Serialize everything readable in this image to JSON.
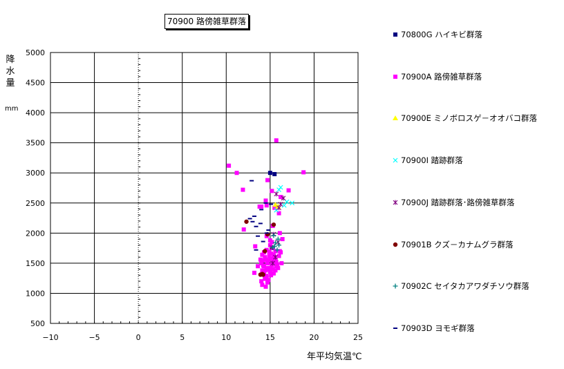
{
  "title": "70900 路傍雑草群落",
  "y_axis": {
    "label_chars": [
      "降",
      "水",
      "量"
    ],
    "unit": "mm"
  },
  "x_axis": {
    "label": "年平均気温℃"
  },
  "chart_data": {
    "type": "scatter",
    "title": "70900 路傍雑草群落",
    "xlabel": "年平均気温℃",
    "ylabel": "降水量 mm",
    "xlim": [
      -10,
      25
    ],
    "ylim": [
      500,
      5000
    ],
    "x_ticks": [
      -10,
      -5,
      0,
      5,
      10,
      15,
      20,
      25
    ],
    "y_ticks": [
      500,
      1000,
      1500,
      2000,
      2500,
      3000,
      3500,
      4000,
      4500,
      5000
    ],
    "x_tick_labels": [
      "−10",
      "−5",
      "0",
      "5",
      "10",
      "15",
      "20",
      "25"
    ],
    "grid": true,
    "legend": "right",
    "series": [
      {
        "name": "70800G ハイキビ群落",
        "marker": "square",
        "color": "#000080",
        "points": [
          [
            15.0,
            3000
          ],
          [
            15.5,
            2980
          ]
        ]
      },
      {
        "name": "70900A 路傍雑草群落",
        "marker": "square",
        "color": "#ff00ff",
        "points": [
          [
            15.7,
            3540
          ],
          [
            10.3,
            3120
          ],
          [
            11.2,
            3000
          ],
          [
            18.8,
            3010
          ],
          [
            14.7,
            2880
          ],
          [
            17.1,
            2710
          ],
          [
            11.9,
            2720
          ],
          [
            15.2,
            2700
          ],
          [
            16.2,
            2600
          ],
          [
            14.5,
            2540
          ],
          [
            14.0,
            2440
          ],
          [
            14.6,
            2460
          ],
          [
            15.5,
            2420
          ],
          [
            16.0,
            2330
          ],
          [
            13.8,
            2440
          ],
          [
            15.3,
            2120
          ],
          [
            12.0,
            2060
          ],
          [
            16.1,
            2000
          ],
          [
            14.6,
            1950
          ],
          [
            15.0,
            1880
          ],
          [
            16.4,
            1900
          ],
          [
            13.3,
            1780
          ],
          [
            16.1,
            1700
          ],
          [
            14.1,
            1640
          ],
          [
            13.6,
            1450
          ],
          [
            16.3,
            1500
          ],
          [
            14.8,
            1400
          ],
          [
            15.6,
            1380
          ],
          [
            13.2,
            1340
          ],
          [
            14.3,
            1330
          ],
          [
            14.0,
            1200
          ],
          [
            14.6,
            1260
          ],
          [
            14.1,
            1140
          ],
          [
            14.5,
            1110
          ],
          [
            15.0,
            1800
          ],
          [
            15.3,
            1750
          ],
          [
            14.9,
            1690
          ],
          [
            15.4,
            1640
          ],
          [
            14.4,
            1600
          ],
          [
            15.1,
            1580
          ],
          [
            14.2,
            1540
          ],
          [
            15.5,
            1530
          ],
          [
            14.7,
            1500
          ],
          [
            15.2,
            1470
          ],
          [
            14.3,
            1450
          ],
          [
            15.7,
            1450
          ],
          [
            14.9,
            1420
          ],
          [
            15.3,
            1400
          ],
          [
            14.5,
            1380
          ],
          [
            15.0,
            1360
          ],
          [
            14.2,
            1310
          ],
          [
            15.4,
            1330
          ],
          [
            14.6,
            1290
          ],
          [
            15.1,
            1300
          ],
          [
            14.4,
            1240
          ],
          [
            14.8,
            1220
          ],
          [
            15.6,
            1560
          ],
          [
            16.0,
            1620
          ],
          [
            14.0,
            1500
          ],
          [
            15.8,
            1480
          ],
          [
            14.6,
            1720
          ],
          [
            15.2,
            1850
          ],
          [
            14.1,
            1380
          ],
          [
            15.5,
            1600
          ],
          [
            14.8,
            1550
          ],
          [
            14.3,
            1680
          ],
          [
            15.9,
            1420
          ],
          [
            14.7,
            1180
          ],
          [
            15.0,
            1420
          ],
          [
            14.5,
            1560
          ],
          [
            15.3,
            1520
          ],
          [
            14.9,
            1620
          ],
          [
            16.2,
            1680
          ],
          [
            13.9,
            1560
          ],
          [
            15.6,
            1700
          ],
          [
            14.2,
            1460
          ],
          [
            15.1,
            1660
          ],
          [
            14.6,
            1420
          ],
          [
            15.7,
            1520
          ]
        ]
      },
      {
        "name": "70900E ミノボロスゲ－オオバコ群落",
        "marker": "triangle",
        "color": "#ffff00",
        "points": [
          [
            15.6,
            2470
          ],
          [
            15.9,
            2440
          ]
        ]
      },
      {
        "name": "70900I 踏跡群落",
        "marker": "x",
        "color": "#00ffff",
        "points": [
          [
            16.2,
            2760
          ],
          [
            16.0,
            2720
          ],
          [
            17.5,
            2500
          ],
          [
            16.9,
            2520
          ],
          [
            16.6,
            2460
          ],
          [
            15.7,
            2380
          ]
        ]
      },
      {
        "name": "70900J 踏跡群落･路傍雑草群落",
        "marker": "star",
        "color": "#800080",
        "points": [
          [
            15.7,
            2650
          ],
          [
            16.5,
            2580
          ],
          [
            16.2,
            2480
          ],
          [
            16.0,
            2420
          ],
          [
            15.4,
            1980
          ],
          [
            15.9,
            1850
          ],
          [
            15.2,
            1760
          ],
          [
            15.6,
            1600
          ],
          [
            15.3,
            1500
          ]
        ]
      },
      {
        "name": "70901B クズ－カナムグラ群落",
        "marker": "circle",
        "color": "#800000",
        "points": [
          [
            15.4,
            2140
          ],
          [
            12.3,
            2190
          ],
          [
            14.7,
            1980
          ],
          [
            14.4,
            1700
          ],
          [
            14.1,
            1320
          ],
          [
            14.2,
            1310
          ],
          [
            13.9,
            1310
          ]
        ]
      },
      {
        "name": "70902C セイタカアワダチソウ群落",
        "marker": "plus",
        "color": "#008080",
        "points": [
          [
            15.4,
            1960
          ],
          [
            15.9,
            1900
          ],
          [
            15.6,
            1840
          ],
          [
            16.0,
            1800
          ],
          [
            15.5,
            1780
          ],
          [
            15.8,
            1720
          ],
          [
            15.3,
            1760
          ]
        ]
      },
      {
        "name": "70903D ヨモギ群落",
        "marker": "dash",
        "color": "#000080",
        "points": [
          [
            12.9,
            2870
          ],
          [
            14.5,
            2500
          ],
          [
            14.0,
            2390
          ],
          [
            13.2,
            2280
          ],
          [
            12.7,
            2240
          ],
          [
            13.0,
            2190
          ],
          [
            13.9,
            2160
          ],
          [
            13.4,
            2110
          ],
          [
            14.6,
            2000
          ],
          [
            13.6,
            1950
          ],
          [
            14.2,
            1860
          ],
          [
            13.4,
            1720
          ],
          [
            15.1,
            2480
          ],
          [
            14.8,
            2050
          ]
        ]
      }
    ]
  }
}
